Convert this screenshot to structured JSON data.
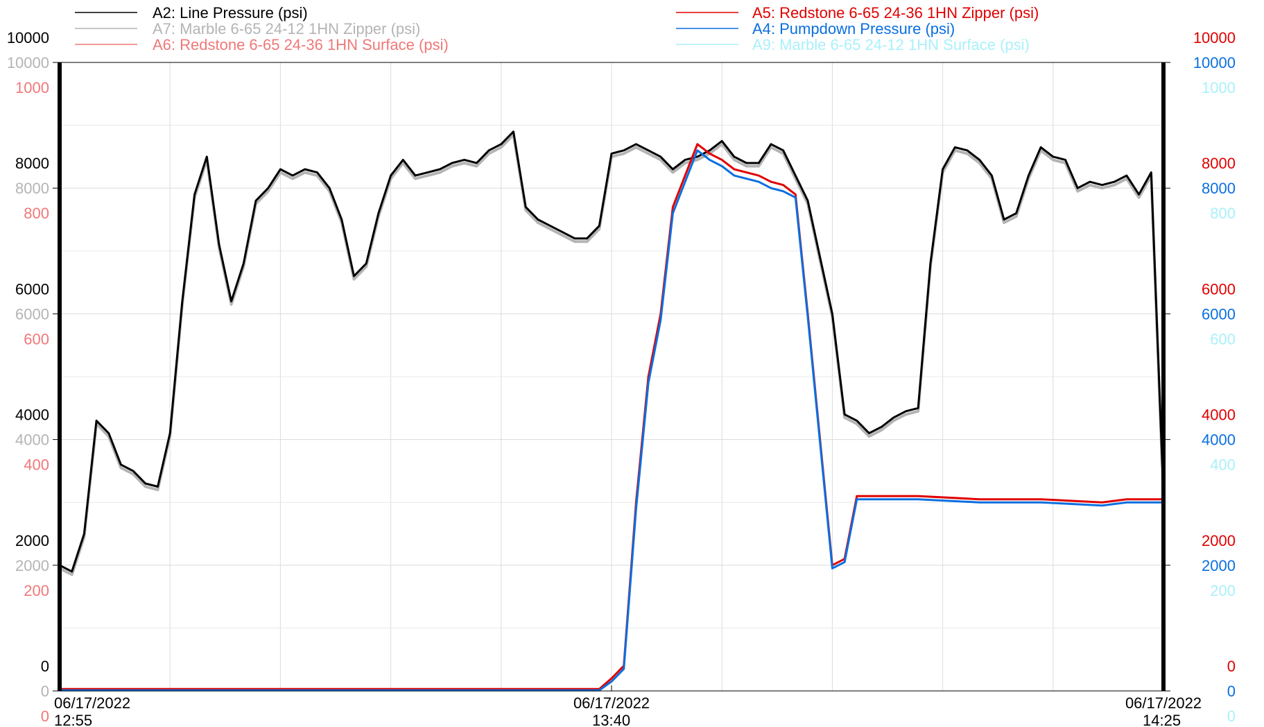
{
  "chart_data": {
    "type": "line",
    "title": "",
    "xlabel": "",
    "x_ticks": [
      {
        "time": "12:55",
        "date": "06/17/2022",
        "label_line1": "06/17/2022",
        "label_line2": "12:55"
      },
      {
        "time": "13:40",
        "date": "06/17/2022",
        "label_line1": "06/17/2022",
        "label_line2": "13:40"
      },
      {
        "time": "14:25",
        "date": "06/17/2022",
        "label_line1": "06/17/2022",
        "label_line2": "14:25"
      }
    ],
    "xlim": [
      "12:55",
      "14:25"
    ],
    "grid": true,
    "legend_placement": "top",
    "axes": [
      {
        "id": "ax_a2",
        "side": "left",
        "color": "#000000",
        "ylim": [
          0,
          10000
        ],
        "ticks": [
          "0",
          "2000",
          "4000",
          "6000",
          "8000",
          "10000"
        ]
      },
      {
        "id": "ax_a7",
        "side": "left",
        "color": "#b4b4b4",
        "ylim": [
          0,
          10000
        ],
        "ticks": [
          "0",
          "2000",
          "4000",
          "6000",
          "8000",
          "10000"
        ]
      },
      {
        "id": "ax_a6",
        "side": "left",
        "color": "#f07878",
        "ylim": [
          0,
          1000
        ],
        "ticks": [
          "0",
          "200",
          "400",
          "600",
          "800",
          "1000"
        ]
      },
      {
        "id": "ax_a5",
        "side": "right",
        "color": "#e00000",
        "ylim": [
          0,
          10000
        ],
        "ticks": [
          "0",
          "2000",
          "4000",
          "6000",
          "8000",
          "10000"
        ]
      },
      {
        "id": "ax_a4",
        "side": "right",
        "color": "#0a6fe0",
        "ylim": [
          0,
          10000
        ],
        "ticks": [
          "0",
          "2000",
          "4000",
          "6000",
          "8000",
          "10000"
        ]
      },
      {
        "id": "ax_a9",
        "side": "right",
        "color": "#aaf0fa",
        "ylim": [
          0,
          1000
        ],
        "ticks": [
          "0",
          "200",
          "400",
          "600",
          "800",
          "1000"
        ]
      }
    ],
    "series": [
      {
        "name": "A2: Line Pressure (psi)",
        "color": "#000000",
        "axis": "ax_a2",
        "legend_side": "left",
        "x": [
          "12:55",
          "12:56",
          "12:57",
          "12:58",
          "12:59",
          "13:00",
          "13:01",
          "13:02",
          "13:03",
          "13:04",
          "13:05",
          "13:06",
          "13:07",
          "13:08",
          "13:09",
          "13:10",
          "13:11",
          "13:12",
          "13:13",
          "13:14",
          "13:15",
          "13:16",
          "13:17",
          "13:18",
          "13:19",
          "13:20",
          "13:21",
          "13:22",
          "13:23",
          "13:24",
          "13:25",
          "13:26",
          "13:27",
          "13:28",
          "13:29",
          "13:30",
          "13:31",
          "13:32",
          "13:33",
          "13:34",
          "13:35",
          "13:36",
          "13:37",
          "13:38",
          "13:39",
          "13:40",
          "13:41",
          "13:42",
          "13:43",
          "13:44",
          "13:45",
          "13:46",
          "13:47",
          "13:48",
          "13:49",
          "13:50",
          "13:51",
          "13:52",
          "13:53",
          "13:54",
          "13:55",
          "13:56",
          "13:57",
          "13:58",
          "13:59",
          "14:00",
          "14:01",
          "14:02",
          "14:03",
          "14:04",
          "14:05",
          "14:06",
          "14:07",
          "14:08",
          "14:09",
          "14:10",
          "14:11",
          "14:12",
          "14:13",
          "14:14",
          "14:15",
          "14:16",
          "14:17",
          "14:18",
          "14:19",
          "14:20",
          "14:21",
          "14:22",
          "14:23",
          "14:24",
          "14:25"
        ],
        "values": [
          2000,
          1900,
          2500,
          4300,
          4100,
          3600,
          3500,
          3300,
          3250,
          4100,
          6200,
          7900,
          8500,
          7100,
          6200,
          6800,
          7800,
          8000,
          8300,
          8200,
          8300,
          8250,
          8000,
          7500,
          6600,
          6800,
          7600,
          8200,
          8450,
          8200,
          8250,
          8300,
          8400,
          8450,
          8400,
          8600,
          8700,
          8900,
          7700,
          7500,
          7400,
          7300,
          7200,
          7200,
          7400,
          8550,
          8600,
          8700,
          8600,
          8500,
          8300,
          8450,
          8500,
          8600,
          8750,
          8500,
          8400,
          8400,
          8700,
          8600,
          8200,
          7800,
          6900,
          6000,
          4400,
          4300,
          4100,
          4200,
          4350,
          4450,
          4500,
          6800,
          8300,
          8650,
          8600,
          8450,
          8200,
          7500,
          7600,
          8200,
          8650,
          8500,
          8450,
          8000,
          8100,
          8050,
          8100,
          8200,
          7900,
          8250,
          3100
        ],
        "lw": 3
      },
      {
        "name": "A7: Marble 6-65 24-12 1HN Zipper (psi)",
        "color": "#b4b4b4",
        "axis": "ax_a7",
        "legend_side": "left",
        "x": [
          "12:55",
          "12:56",
          "12:57",
          "12:58",
          "12:59",
          "13:00",
          "13:01",
          "13:02",
          "13:03",
          "13:04",
          "13:05",
          "13:06",
          "13:07",
          "13:08",
          "13:09",
          "13:10",
          "13:11",
          "13:12",
          "13:13",
          "13:14",
          "13:15",
          "13:16",
          "13:17",
          "13:18",
          "13:19",
          "13:20",
          "13:21",
          "13:22",
          "13:23",
          "13:24",
          "13:25",
          "13:26",
          "13:27",
          "13:28",
          "13:29",
          "13:30",
          "13:31",
          "13:32",
          "13:33",
          "13:34",
          "13:35",
          "13:36",
          "13:37",
          "13:38",
          "13:39",
          "13:40",
          "13:41",
          "13:42",
          "13:43",
          "13:44",
          "13:45",
          "13:46",
          "13:47",
          "13:48",
          "13:49",
          "13:50",
          "13:51",
          "13:52",
          "13:53",
          "13:54",
          "13:55",
          "13:56",
          "13:57",
          "13:58",
          "13:59",
          "14:00",
          "14:01",
          "14:02",
          "14:03",
          "14:04",
          "14:05",
          "14:06",
          "14:07",
          "14:08",
          "14:09",
          "14:10",
          "14:11",
          "14:12",
          "14:13",
          "14:14",
          "14:15",
          "14:16",
          "14:17",
          "14:18",
          "14:19",
          "14:20",
          "14:21",
          "14:22",
          "14:23",
          "14:24",
          "14:25"
        ],
        "values": [
          1950,
          1850,
          2450,
          4250,
          4050,
          3550,
          3450,
          3250,
          3200,
          4050,
          6150,
          7850,
          8450,
          7050,
          6150,
          6750,
          7750,
          7950,
          8250,
          8150,
          8250,
          8200,
          7950,
          7450,
          6550,
          6750,
          7550,
          8150,
          8400,
          8150,
          8200,
          8250,
          8350,
          8400,
          8350,
          8550,
          8650,
          8850,
          7650,
          7450,
          7350,
          7250,
          7150,
          7150,
          7350,
          8500,
          8550,
          8650,
          8550,
          8450,
          8250,
          8400,
          8450,
          8550,
          8700,
          8450,
          8350,
          8350,
          8650,
          8550,
          8150,
          7750,
          6850,
          5950,
          4350,
          4250,
          4050,
          4150,
          4300,
          4400,
          4450,
          6750,
          8250,
          8600,
          8550,
          8400,
          8150,
          7450,
          7550,
          8150,
          8600,
          8450,
          8400,
          7950,
          8050,
          8000,
          8050,
          8150,
          7850,
          8200,
          3050
        ],
        "lw": 4
      },
      {
        "name": "A6: Redstone 6-65 24-36 1HN Surface (psi)",
        "color": "#f07878",
        "axis": "ax_a6",
        "legend_side": "left",
        "x": [],
        "values": [],
        "lw": 2
      },
      {
        "name": "A5: Redstone 6-65 24-36 1HN Zipper (psi)",
        "color": "#e00000",
        "axis": "ax_a5",
        "legend_side": "right",
        "x": [
          "12:55",
          "13:00",
          "13:10",
          "13:20",
          "13:30",
          "13:38",
          "13:39",
          "13:40",
          "13:41",
          "13:42",
          "13:43",
          "13:44",
          "13:45",
          "13:46",
          "13:47",
          "13:48",
          "13:49",
          "13:50",
          "13:51",
          "13:52",
          "13:53",
          "13:54",
          "13:55",
          "13:56",
          "13:57",
          "13:58",
          "13:59",
          "14:00",
          "14:01",
          "14:02",
          "14:05",
          "14:10",
          "14:15",
          "14:20",
          "14:22",
          "14:25"
        ],
        "values": [
          30,
          30,
          30,
          30,
          30,
          30,
          30,
          200,
          400,
          3000,
          5000,
          6000,
          7700,
          8200,
          8700,
          8550,
          8450,
          8300,
          8250,
          8200,
          8100,
          8050,
          7900,
          6000,
          4000,
          2000,
          2100,
          3100,
          3100,
          3100,
          3100,
          3050,
          3050,
          3000,
          3050,
          3050
        ],
        "lw": 3
      },
      {
        "name": "A4: Pumpdown Pressure (psi)",
        "color": "#0a6fe0",
        "axis": "ax_a4",
        "legend_side": "right",
        "x": [
          "12:55",
          "13:00",
          "13:10",
          "13:20",
          "13:30",
          "13:38",
          "13:39",
          "13:40",
          "13:41",
          "13:42",
          "13:43",
          "13:44",
          "13:45",
          "13:46",
          "13:47",
          "13:48",
          "13:49",
          "13:50",
          "13:51",
          "13:52",
          "13:53",
          "13:54",
          "13:55",
          "13:56",
          "13:57",
          "13:58",
          "13:59",
          "14:00",
          "14:01",
          "14:02",
          "14:05",
          "14:10",
          "14:15",
          "14:20",
          "14:22",
          "14:25"
        ],
        "values": [
          10,
          10,
          10,
          10,
          10,
          10,
          10,
          150,
          350,
          2900,
          4900,
          5900,
          7600,
          8100,
          8600,
          8450,
          8350,
          8200,
          8150,
          8100,
          8000,
          7950,
          7850,
          5950,
          3950,
          1950,
          2050,
          3050,
          3050,
          3050,
          3050,
          3000,
          3000,
          2950,
          3000,
          3000
        ],
        "lw": 3
      },
      {
        "name": "A9: Marble 6-65 24-12 1HN Surface (psi)",
        "color": "#aaf0fa",
        "axis": "ax_a9",
        "legend_side": "right",
        "x": [],
        "values": [],
        "lw": 2
      }
    ]
  }
}
